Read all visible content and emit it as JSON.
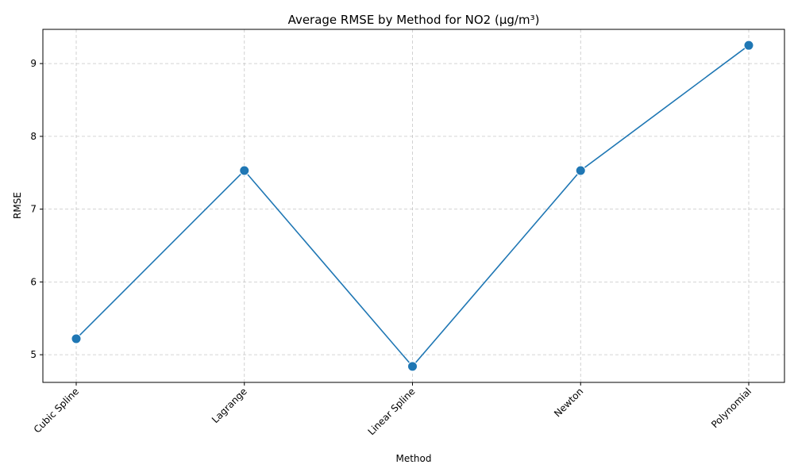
{
  "colors": {
    "series": "#1f77b4"
  },
  "chart_data": {
    "type": "line",
    "title": "Average RMSE by Method for NO2 (μg/m³)",
    "xlabel": "Method",
    "ylabel": "RMSE",
    "categories": [
      "Cubic Spline",
      "Lagrange",
      "Linear Spline",
      "Newton",
      "Polynomial"
    ],
    "series": [
      {
        "values": [
          5.22,
          7.53,
          4.84,
          7.53,
          9.25
        ]
      }
    ],
    "ylim": [
      4.62,
      9.47
    ],
    "yticks": [
      "5",
      "6",
      "7",
      "8",
      "9"
    ],
    "grid": true,
    "markers": "circle"
  }
}
